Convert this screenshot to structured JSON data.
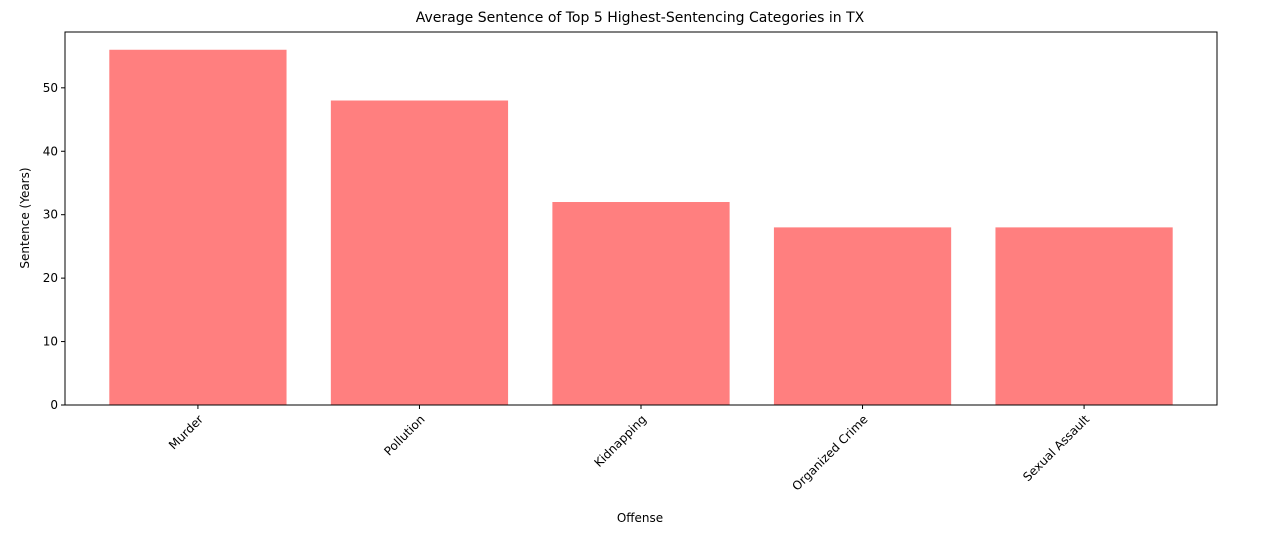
{
  "chart_data": {
    "type": "bar",
    "title": "Average Sentence of Top 5 Highest-Sentencing Categories in TX",
    "xlabel": "Offense",
    "ylabel": "Sentence (Years)",
    "categories": [
      "Murder",
      "Pollution",
      "Kidnapping",
      "Organized Crime",
      "Sexual Assault"
    ],
    "values": [
      56,
      48,
      32,
      28,
      28
    ],
    "ylim": [
      0,
      58.8
    ],
    "yticks": [
      0,
      10,
      20,
      30,
      40,
      50
    ],
    "bar_color": "#ff7f7f",
    "grid": false,
    "legend": "none",
    "xtick_rotation": 45
  }
}
